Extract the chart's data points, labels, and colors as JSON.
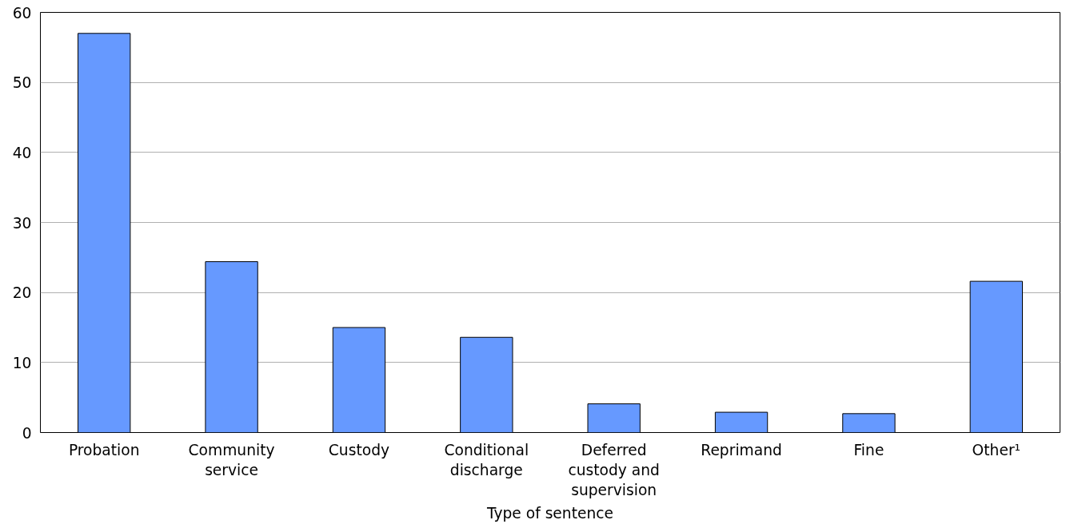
{
  "chart_data": {
    "type": "bar",
    "xlabel": "Type of sentence",
    "categories": [
      "Probation",
      "Community service",
      "Custody",
      "Conditional discharge",
      "Deferred custody and supervision",
      "Reprimand",
      "Fine",
      "Other¹"
    ],
    "values": [
      57.0,
      24.4,
      15.0,
      13.6,
      4.1,
      2.9,
      2.7,
      21.6
    ],
    "color": "#6699ff",
    "ylim": [
      0,
      60
    ],
    "yticks": [
      0,
      10,
      20,
      30,
      40,
      50,
      60
    ],
    "grid": "y"
  }
}
